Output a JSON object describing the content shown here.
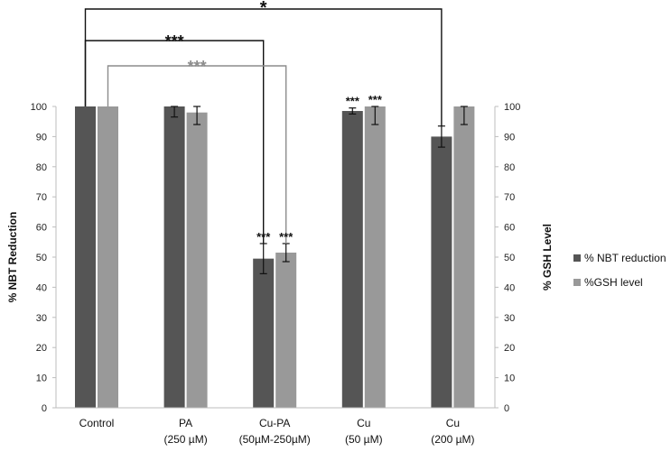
{
  "chart_data": {
    "type": "bar",
    "title": "",
    "categories": [
      [
        "Control"
      ],
      [
        "PA",
        "(250 µM)"
      ],
      [
        "Cu-PA",
        "(50µM-250µM)"
      ],
      [
        "Cu",
        "(50 µM)"
      ],
      [
        "Cu",
        "(200 µM)"
      ]
    ],
    "series": [
      {
        "name": "% NBT reduction",
        "color": "#555555",
        "values": [
          100,
          100,
          49.5,
          98.5,
          90
        ],
        "errors": [
          0,
          3.5,
          5,
          1,
          3.5
        ]
      },
      {
        "name": "%GSH level",
        "color": "#999999",
        "values": [
          100,
          98,
          51.5,
          100,
          100
        ],
        "errors": [
          0,
          4,
          3,
          6,
          6
        ]
      }
    ],
    "ylabel_left": "% NBT Reduction",
    "ylabel_right": "% GSH Level",
    "ylim": [
      0,
      100
    ],
    "yticks": [
      0,
      10,
      20,
      30,
      40,
      50,
      60,
      70,
      80,
      90,
      100
    ],
    "legend_position": "right",
    "annotations": [
      {
        "text": "***",
        "category": 2,
        "series": 0,
        "color": "#111111"
      },
      {
        "text": "***",
        "category": 2,
        "series": 1,
        "color": "#111111"
      },
      {
        "text": "***",
        "category": 3,
        "series": 0,
        "color": "#111111"
      },
      {
        "text": "***",
        "category": 3,
        "series": 1,
        "color": "#111111"
      }
    ],
    "brackets": [
      {
        "text": "*",
        "from": [
          0,
          0
        ],
        "to": [
          4,
          0
        ],
        "color": "#111111"
      },
      {
        "text": "***",
        "from": [
          0,
          0
        ],
        "to": [
          2,
          0
        ],
        "color": "#111111"
      },
      {
        "text": "***",
        "from": [
          0,
          1
        ],
        "to": [
          2,
          1
        ],
        "color": "#8c8c8c"
      }
    ]
  }
}
